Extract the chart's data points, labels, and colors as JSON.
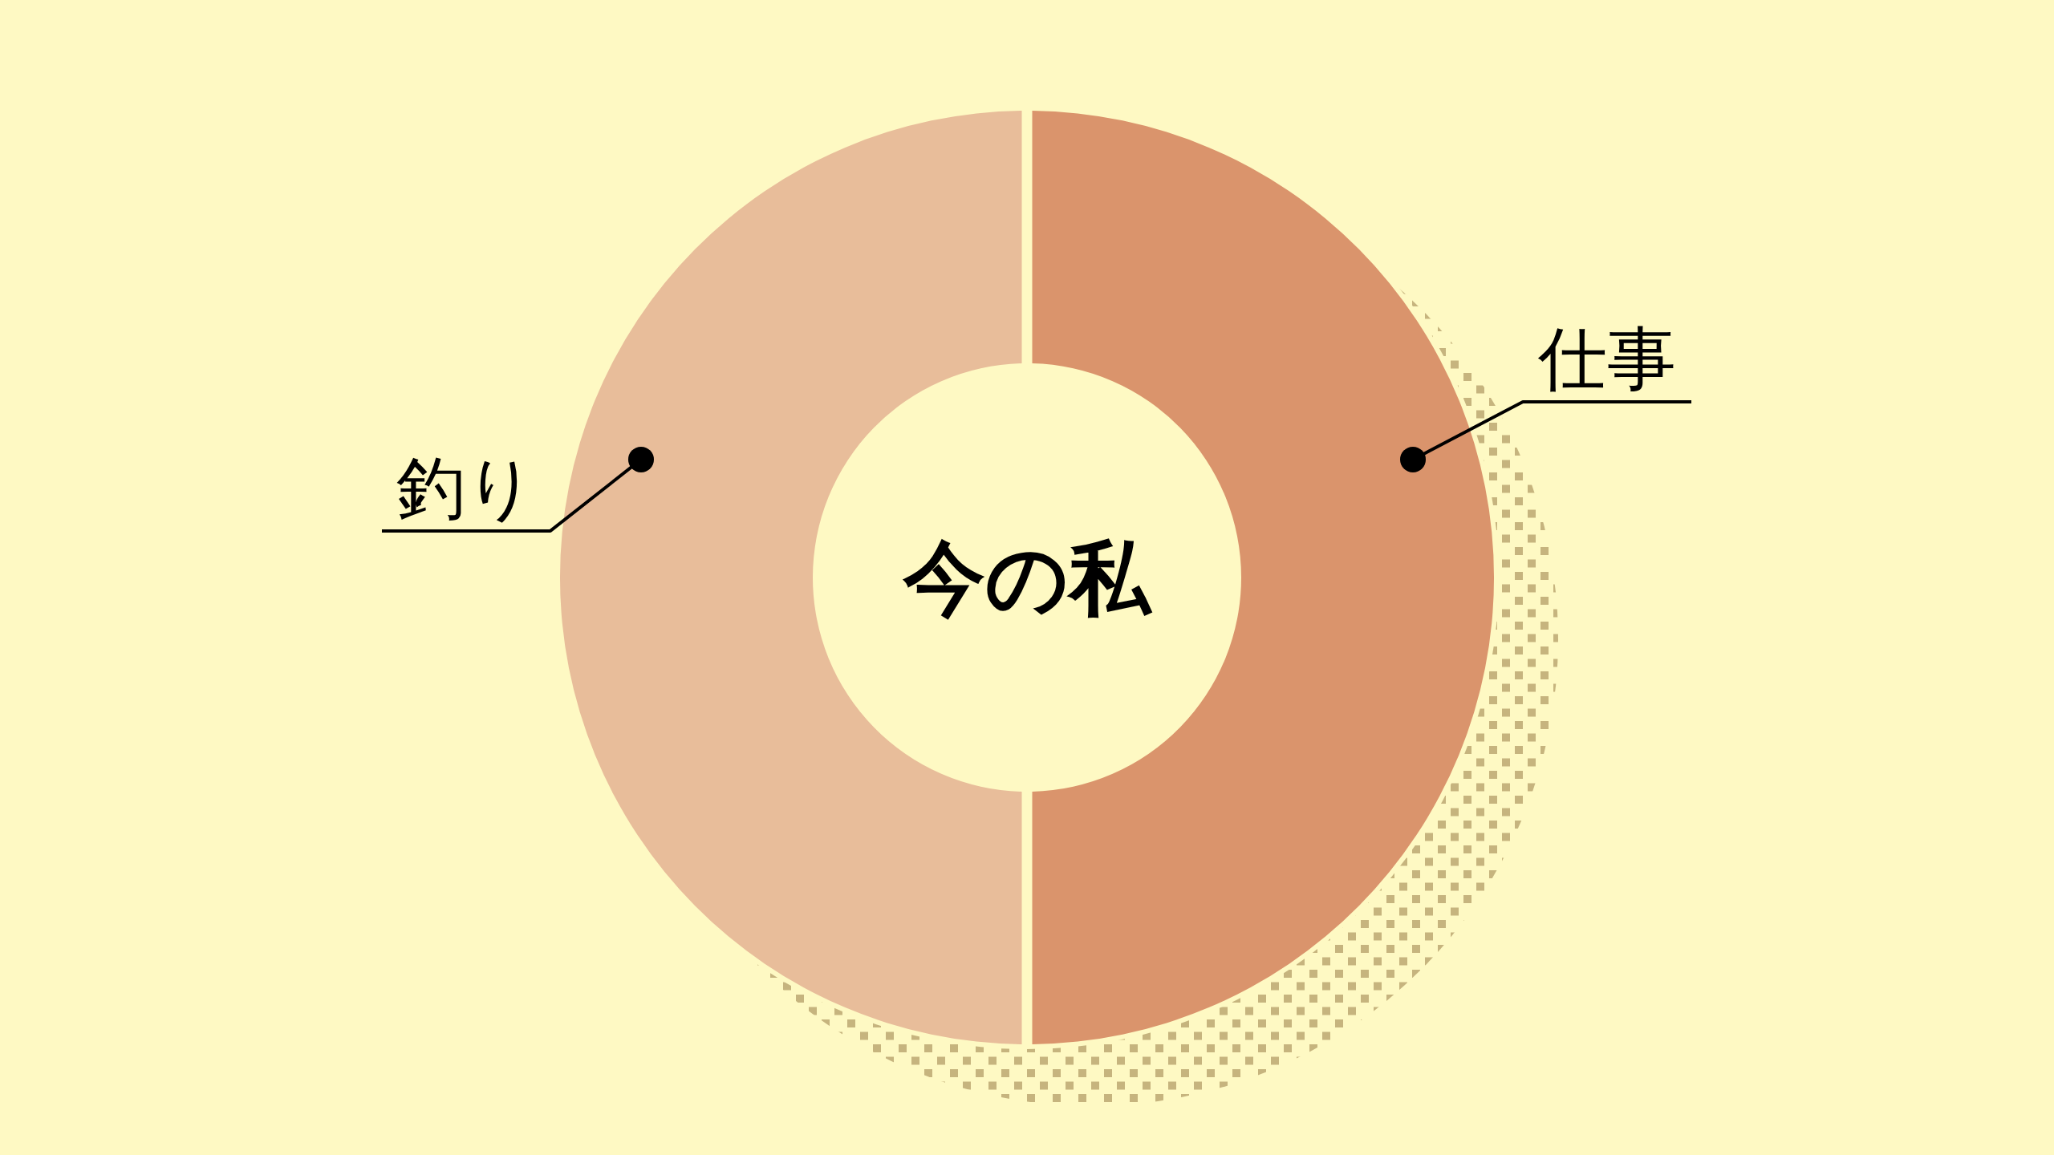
{
  "chart_data": {
    "type": "donut",
    "title": "今の私",
    "categories": [
      "仕事",
      "釣り"
    ],
    "values": [
      50,
      50
    ],
    "colors": [
      "#da946c",
      "#e8bd9a"
    ]
  }
}
